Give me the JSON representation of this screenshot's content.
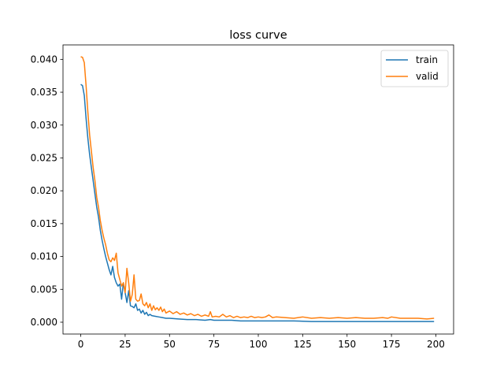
{
  "chart_data": {
    "type": "line",
    "title": "loss curve",
    "xlabel": "",
    "ylabel": "",
    "xlim": [
      -10,
      210
    ],
    "ylim": [
      -0.0018,
      0.0422
    ],
    "xticks": [
      0,
      25,
      50,
      75,
      100,
      125,
      150,
      175,
      200
    ],
    "yticks": [
      0.0,
      0.005,
      0.01,
      0.015,
      0.02,
      0.025,
      0.03,
      0.035,
      0.04
    ],
    "ytick_labels": [
      "0.000",
      "0.005",
      "0.010",
      "0.015",
      "0.020",
      "0.025",
      "0.030",
      "0.035",
      "0.040"
    ],
    "grid": false,
    "legend_position": "top-right",
    "series": [
      {
        "name": "train",
        "color": "#1f77b4",
        "x": [
          0,
          1,
          2,
          3,
          4,
          5,
          6,
          7,
          8,
          9,
          10,
          11,
          12,
          13,
          14,
          15,
          16,
          17,
          18,
          19,
          20,
          21,
          22,
          23,
          24,
          25,
          26,
          27,
          28,
          29,
          30,
          31,
          32,
          33,
          34,
          35,
          36,
          37,
          38,
          39,
          40,
          42,
          44,
          46,
          48,
          50,
          55,
          60,
          65,
          70,
          73,
          75,
          80,
          85,
          90,
          95,
          100,
          105,
          110,
          120,
          130,
          140,
          150,
          160,
          170,
          180,
          190,
          199
        ],
        "y": [
          0.0362,
          0.036,
          0.0345,
          0.031,
          0.028,
          0.0255,
          0.0235,
          0.0215,
          0.0195,
          0.0175,
          0.016,
          0.014,
          0.0125,
          0.0112,
          0.01,
          0.009,
          0.008,
          0.0072,
          0.0085,
          0.0068,
          0.006,
          0.0055,
          0.0058,
          0.0035,
          0.006,
          0.0045,
          0.003,
          0.0048,
          0.0025,
          0.0024,
          0.0022,
          0.0028,
          0.0018,
          0.002,
          0.0014,
          0.0018,
          0.0012,
          0.0015,
          0.001,
          0.0012,
          0.001,
          0.0009,
          0.0008,
          0.0007,
          0.0006,
          0.0006,
          0.0005,
          0.0004,
          0.0004,
          0.0003,
          0.0004,
          0.0003,
          0.0003,
          0.0003,
          0.0002,
          0.0002,
          0.0002,
          0.0002,
          0.0002,
          0.0002,
          0.0001,
          0.0001,
          0.0001,
          0.0001,
          0.0001,
          0.0001,
          0.0001,
          0.0001
        ]
      },
      {
        "name": "valid",
        "color": "#ff7f0e",
        "x": [
          0,
          1,
          2,
          3,
          4,
          5,
          6,
          7,
          8,
          9,
          10,
          11,
          12,
          13,
          14,
          15,
          16,
          17,
          18,
          19,
          20,
          21,
          22,
          23,
          24,
          25,
          26,
          27,
          28,
          29,
          30,
          31,
          32,
          33,
          34,
          35,
          36,
          37,
          38,
          39,
          40,
          41,
          42,
          43,
          44,
          45,
          46,
          47,
          48,
          50,
          52,
          54,
          56,
          58,
          60,
          62,
          64,
          66,
          68,
          70,
          72,
          73,
          74,
          76,
          78,
          80,
          82,
          84,
          86,
          88,
          90,
          92,
          94,
          96,
          98,
          100,
          102,
          104,
          106,
          108,
          110,
          115,
          120,
          125,
          130,
          135,
          140,
          145,
          150,
          155,
          160,
          165,
          170,
          173,
          175,
          180,
          185,
          190,
          195,
          199
        ],
        "y": [
          0.0404,
          0.0403,
          0.0395,
          0.036,
          0.032,
          0.0285,
          0.026,
          0.0235,
          0.0215,
          0.019,
          0.0175,
          0.0155,
          0.014,
          0.0128,
          0.0118,
          0.0105,
          0.0095,
          0.0092,
          0.0098,
          0.0094,
          0.0105,
          0.0075,
          0.0065,
          0.0055,
          0.006,
          0.0045,
          0.0082,
          0.006,
          0.0032,
          0.0042,
          0.0072,
          0.0035,
          0.0032,
          0.0033,
          0.0043,
          0.0028,
          0.0025,
          0.003,
          0.0022,
          0.0028,
          0.0018,
          0.0025,
          0.0019,
          0.0022,
          0.0018,
          0.0023,
          0.0016,
          0.002,
          0.0014,
          0.0017,
          0.0013,
          0.0016,
          0.0012,
          0.0014,
          0.0011,
          0.0013,
          0.001,
          0.0012,
          0.0009,
          0.0011,
          0.0009,
          0.0016,
          0.0008,
          0.0009,
          0.0008,
          0.0012,
          0.0008,
          0.001,
          0.0007,
          0.0009,
          0.0007,
          0.0008,
          0.0007,
          0.0009,
          0.0007,
          0.0008,
          0.0007,
          0.0008,
          0.0011,
          0.0007,
          0.0008,
          0.0007,
          0.0006,
          0.0008,
          0.0006,
          0.0007,
          0.0006,
          0.0007,
          0.0006,
          0.0007,
          0.0006,
          0.0006,
          0.0007,
          0.0006,
          0.0008,
          0.0006,
          0.0006,
          0.0006,
          0.0005,
          0.0006
        ]
      }
    ]
  }
}
